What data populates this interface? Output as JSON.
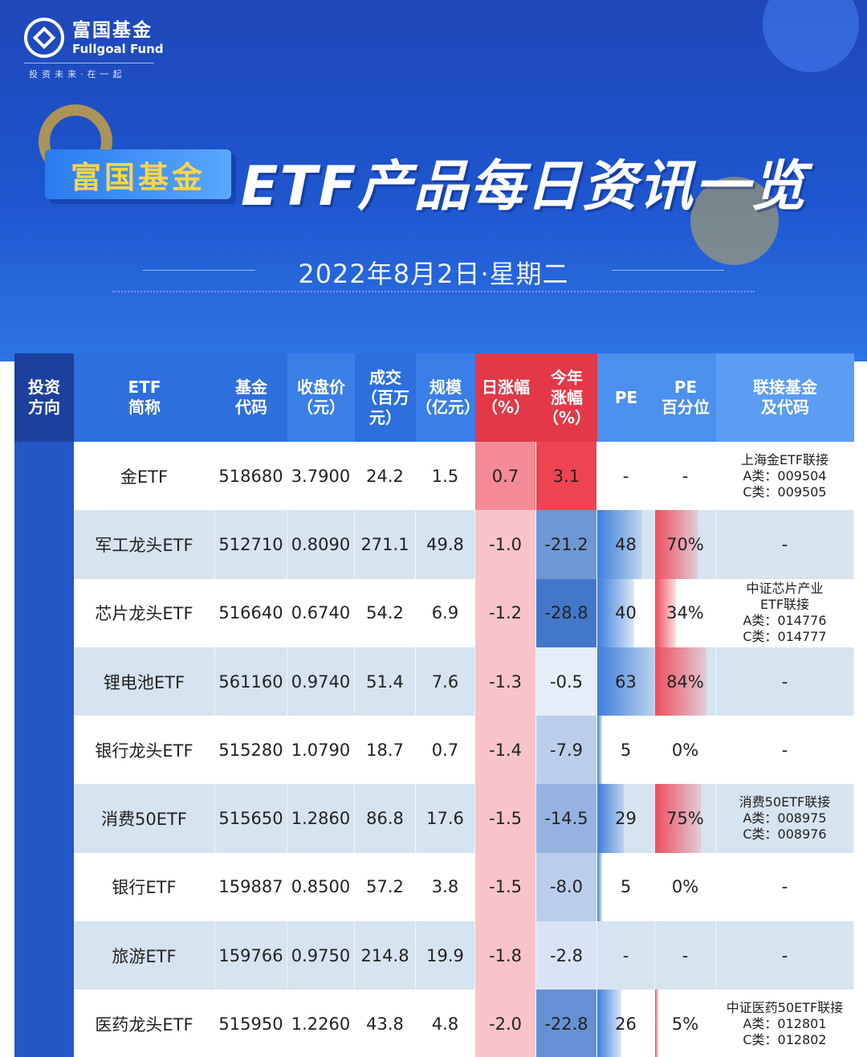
{
  "logo": {
    "cn": "富国基金",
    "en": "Fullgoal Fund",
    "slogan": "投资未来·在一起"
  },
  "brand_tag": "富国基金",
  "title": "ETF产品每日资讯一览",
  "date": "2022年8月2日·星期二",
  "headers": {
    "direction": "投资\n方向",
    "name": "ETF\n简称",
    "code": "基金\n代码",
    "close": "收盘价\n（元）",
    "volume": "成交\n（百万元）",
    "size": "规模\n（亿元）",
    "daily": "日涨幅\n（%）",
    "ytd": "今年\n涨幅\n（%）",
    "pe": "PE",
    "pe_pct": "PE\n百分位",
    "link": "联接基金\n及代码"
  },
  "colors": {
    "red": "#e23848",
    "blue": "#2d6fdc",
    "pink": "#f9b9c1",
    "lightblue": "#d6e3f0"
  },
  "rows": [
    {
      "name": "金ETF",
      "code": "518680",
      "close": "3.7900",
      "volume": "24.2",
      "size": "1.5",
      "daily": "0.7",
      "ytd": "3.1",
      "pe": "-",
      "pe_pct": "-",
      "link": "上海金ETF联接\nA类：009504\nC类：009505",
      "daily_v": 0.7,
      "ytd_v": 3.1,
      "pe_v": 0,
      "pct_v": 0
    },
    {
      "name": "军工龙头ETF",
      "code": "512710",
      "close": "0.8090",
      "volume": "271.1",
      "size": "49.8",
      "daily": "-1.0",
      "ytd": "-21.2",
      "pe": "48",
      "pe_pct": "70%",
      "link": "-",
      "daily_v": -1.0,
      "ytd_v": -21.2,
      "pe_v": 48,
      "pct_v": 70
    },
    {
      "name": "芯片龙头ETF",
      "code": "516640",
      "close": "0.6740",
      "volume": "54.2",
      "size": "6.9",
      "daily": "-1.2",
      "ytd": "-28.8",
      "pe": "40",
      "pe_pct": "34%",
      "link": "中证芯片产业\nETF联接\nA类：014776\nC类：014777",
      "daily_v": -1.2,
      "ytd_v": -28.8,
      "pe_v": 40,
      "pct_v": 34
    },
    {
      "name": "锂电池ETF",
      "code": "561160",
      "close": "0.9740",
      "volume": "51.4",
      "size": "7.6",
      "daily": "-1.3",
      "ytd": "-0.5",
      "pe": "63",
      "pe_pct": "84%",
      "link": "-",
      "daily_v": -1.3,
      "ytd_v": -0.5,
      "pe_v": 63,
      "pct_v": 84
    },
    {
      "name": "银行龙头ETF",
      "code": "515280",
      "close": "1.0790",
      "volume": "18.7",
      "size": "0.7",
      "daily": "-1.4",
      "ytd": "-7.9",
      "pe": "5",
      "pe_pct": "0%",
      "link": "-",
      "daily_v": -1.4,
      "ytd_v": -7.9,
      "pe_v": 5,
      "pct_v": 0
    },
    {
      "name": "消费50ETF",
      "code": "515650",
      "close": "1.2860",
      "volume": "86.8",
      "size": "17.6",
      "daily": "-1.5",
      "ytd": "-14.5",
      "pe": "29",
      "pe_pct": "75%",
      "link": "消费50ETF联接\nA类：008975\nC类：008976",
      "daily_v": -1.5,
      "ytd_v": -14.5,
      "pe_v": 29,
      "pct_v": 75
    },
    {
      "name": "银行ETF",
      "code": "159887",
      "close": "0.8500",
      "volume": "57.2",
      "size": "3.8",
      "daily": "-1.5",
      "ytd": "-8.0",
      "pe": "5",
      "pe_pct": "0%",
      "link": "-",
      "daily_v": -1.5,
      "ytd_v": -8.0,
      "pe_v": 5,
      "pct_v": 0
    },
    {
      "name": "旅游ETF",
      "code": "159766",
      "close": "0.9750",
      "volume": "214.8",
      "size": "19.9",
      "daily": "-1.8",
      "ytd": "-2.8",
      "pe": "-",
      "pe_pct": "-",
      "link": "-",
      "daily_v": -1.8,
      "ytd_v": -2.8,
      "pe_v": 0,
      "pct_v": 0
    },
    {
      "name": "医药龙头ETF",
      "code": "515950",
      "close": "1.2260",
      "volume": "43.8",
      "size": "4.8",
      "daily": "-2.0",
      "ytd": "-22.8",
      "pe": "26",
      "pe_pct": "5%",
      "link": "中证医药50ETF联接\nA类：012801\nC类：012802",
      "daily_v": -2.0,
      "ytd_v": -22.8,
      "pe_v": 26,
      "pct_v": 5
    }
  ]
}
